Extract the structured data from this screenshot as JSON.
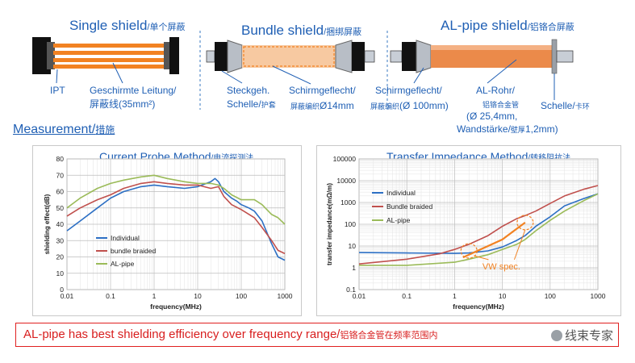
{
  "diagrams": {
    "single": {
      "title": "Single shield",
      "title_cn": "/单个屏蔽",
      "labels": [
        {
          "text": "IPT"
        },
        {
          "text": "Geschirmte Leitung/"
        },
        {
          "text": "屏蔽线(35mm²)"
        }
      ]
    },
    "bundle": {
      "title": "Bundle shield",
      "title_cn": "/捆绑屏蔽",
      "labels": [
        {
          "text": "Steckgeh."
        },
        {
          "text": "Schelle/",
          "cn": "护套"
        },
        {
          "text": "Schirmgeflecht/"
        },
        {
          "text": "Ø14mm",
          "cn": "屏蔽编织"
        }
      ]
    },
    "alpipe": {
      "title": "AL-pipe shield",
      "title_cn": "/铝铬合屏蔽",
      "labels": [
        {
          "text": "Schirmgeflecht/"
        },
        {
          "text": "(Ø 100mm)",
          "cn": "屏蔽编织"
        },
        {
          "text": "AL-Rohr/"
        },
        {
          "text": "铝铬合金管"
        },
        {
          "text": "(Ø 25,4mm,"
        },
        {
          "text": "Wandstärke/",
          "cn": "壁厚",
          "tail": "1,2mm)"
        },
        {
          "text": "Schelle/",
          "cn": "卡环"
        }
      ]
    }
  },
  "measurement": {
    "label": "Measurement/",
    "label_cn": "措施"
  },
  "chart_data": [
    {
      "type": "line",
      "title": "Current Probe Method",
      "title_cn": "/电流探测法",
      "xlabel": "frequency(MHz)",
      "ylabel": "shielding effect(dB)",
      "xscale": "log",
      "xlim": [
        0.01,
        1000
      ],
      "ylim": [
        0,
        80
      ],
      "xticks": [
        "0.01",
        "0.1",
        "1",
        "10",
        "100",
        "1000"
      ],
      "yticks": [
        "0",
        "10",
        "20",
        "30",
        "40",
        "50",
        "60",
        "70",
        "80"
      ],
      "legend": "bottom-left",
      "series": [
        {
          "name": "Individual",
          "color": "#2c6fc4",
          "x": [
            0.01,
            0.02,
            0.05,
            0.1,
            0.2,
            0.5,
            1,
            2,
            5,
            10,
            20,
            25,
            30,
            40,
            60,
            80,
            100,
            150,
            200,
            300,
            500,
            700,
            1000
          ],
          "y": [
            36,
            42,
            50,
            56,
            60,
            63,
            64,
            63,
            62,
            63,
            66,
            68,
            66,
            60,
            56,
            54,
            52,
            50,
            48,
            42,
            28,
            20,
            18
          ]
        },
        {
          "name": "bundle braided",
          "color": "#c0504d",
          "x": [
            0.01,
            0.02,
            0.05,
            0.1,
            0.2,
            0.5,
            1,
            2,
            5,
            10,
            20,
            30,
            40,
            60,
            100,
            200,
            300,
            500,
            700,
            1000
          ],
          "y": [
            45,
            50,
            55,
            58,
            62,
            65,
            66,
            65,
            64,
            64,
            62,
            63,
            57,
            52,
            49,
            44,
            38,
            30,
            24,
            22
          ]
        },
        {
          "name": "AL-pipe",
          "color": "#9bbb59",
          "x": [
            0.01,
            0.02,
            0.05,
            0.1,
            0.2,
            0.5,
            1,
            2,
            5,
            10,
            20,
            30,
            40,
            60,
            100,
            200,
            300,
            500,
            700,
            1000
          ],
          "y": [
            50,
            56,
            62,
            65,
            67,
            69,
            70,
            68,
            66,
            65,
            65,
            64,
            62,
            58,
            55,
            55,
            52,
            46,
            44,
            40
          ]
        }
      ]
    },
    {
      "type": "line",
      "title": "Transfer Impedance Method",
      "title_cn": "/转移阻抗法",
      "xlabel": "frequency(MHz)",
      "ylabel": "transfer impedance(mΩ/m)",
      "xscale": "log",
      "yscale": "log",
      "xlim": [
        0.01,
        1000
      ],
      "ylim": [
        0.1,
        100000
      ],
      "xticks": [
        "0.01",
        "0.1",
        "1",
        "10",
        "100",
        "1000"
      ],
      "yticks": [
        "0.1",
        "1",
        "10",
        "100",
        "1000",
        "10000",
        "100000"
      ],
      "legend": "top-left",
      "annotation": "VW spec.",
      "series": [
        {
          "name": "Individual",
          "color": "#2c6fc4",
          "x": [
            0.01,
            0.1,
            1,
            2,
            5,
            10,
            20,
            30,
            50,
            100,
            200,
            500,
            1000
          ],
          "y": [
            5,
            4.8,
            4.6,
            4.8,
            6,
            9,
            18,
            30,
            80,
            220,
            700,
            1500,
            2500
          ]
        },
        {
          "name": "Bundle braided",
          "color": "#c0504d",
          "x": [
            0.01,
            0.1,
            0.5,
            1,
            2,
            5,
            10,
            20,
            30,
            50,
            100,
            200,
            500,
            1000
          ],
          "y": [
            1.5,
            2.5,
            4.5,
            7,
            12,
            30,
            80,
            180,
            250,
            400,
            900,
            2000,
            4000,
            6000
          ]
        },
        {
          "name": "AL-pipe",
          "color": "#9bbb59",
          "x": [
            0.01,
            0.1,
            1,
            2,
            5,
            10,
            20,
            30,
            50,
            100,
            200,
            500,
            1000
          ],
          "y": [
            1.3,
            1.3,
            1.8,
            2.5,
            4,
            7,
            12,
            20,
            50,
            150,
            400,
            1200,
            2500
          ]
        }
      ]
    }
  ],
  "banner": {
    "text": "AL-pipe has best shielding efficiency over frequency range/",
    "text_cn": "铝铬合金管在频率范围内",
    "watermark": "线束专家"
  },
  "colors": {
    "accent": "#1f5fb4",
    "orange": "#f28222",
    "red": "#d81e1e"
  }
}
